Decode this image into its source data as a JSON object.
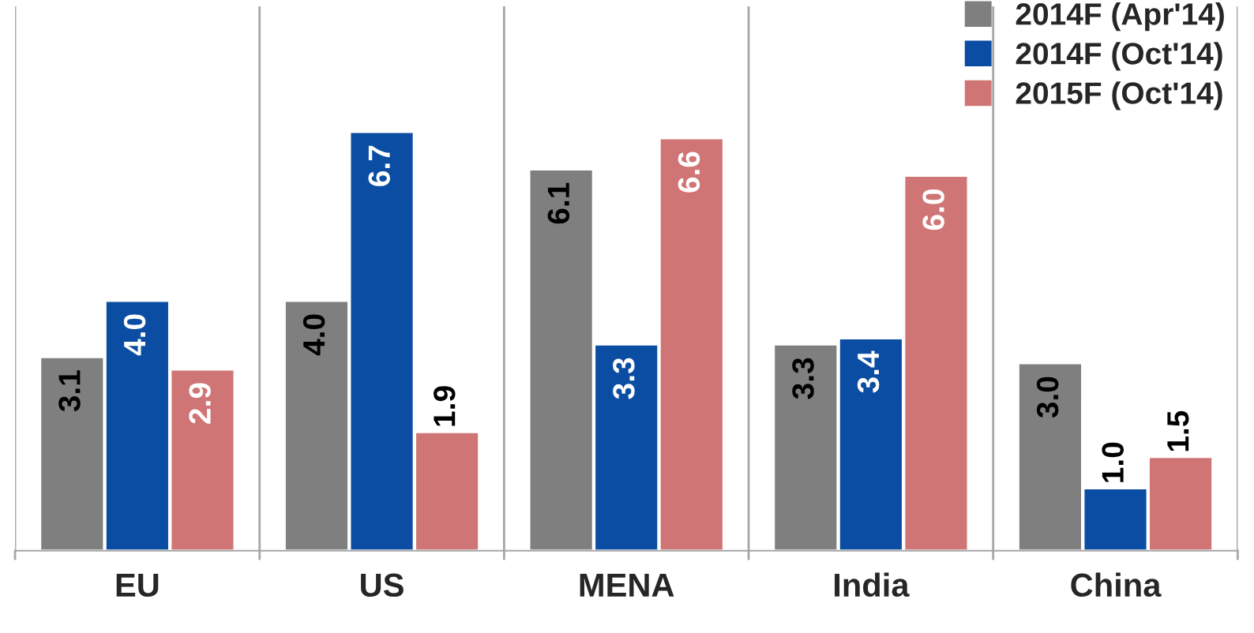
{
  "chart_data": {
    "type": "bar",
    "categories": [
      "EU",
      "US",
      "MENA",
      "India",
      "China"
    ],
    "series": [
      {
        "name": "2014F (Apr'14)",
        "color": "#7f7f7f",
        "values": [
          3.1,
          4.0,
          6.1,
          3.3,
          3.0
        ],
        "value_labels": [
          "3.1",
          "4.0",
          "6.1",
          "3.3",
          "3.0"
        ]
      },
      {
        "name": "2014F (Oct'14)",
        "color": "#0a4da2",
        "values": [
          4.0,
          6.7,
          3.3,
          3.4,
          1.0
        ],
        "value_labels": [
          "4.0",
          "6.7",
          "3.3",
          "3.4",
          "1.0"
        ]
      },
      {
        "name": "2015F (Oct'14)",
        "color": "#d07575",
        "values": [
          2.9,
          1.9,
          6.6,
          6.0,
          1.5
        ],
        "value_labels": [
          "2.9",
          "1.9",
          "6.6",
          "6.0",
          "1.5"
        ]
      }
    ],
    "legend": "top right",
    "grid": "x"
  }
}
